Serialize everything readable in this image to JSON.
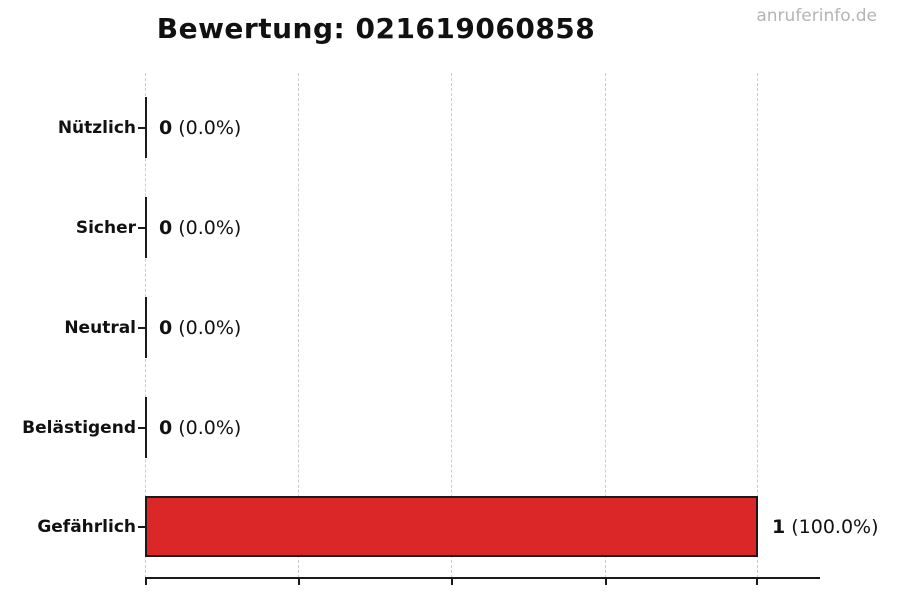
{
  "title": "Bewertung: 021619060858",
  "watermark": "anruferinfo.de",
  "chart_data": {
    "type": "bar",
    "orientation": "horizontal",
    "title": "Bewertung: 021619060858",
    "categories": [
      "Nützlich",
      "Sicher",
      "Neutral",
      "Belästigend",
      "Gefährlich"
    ],
    "values": [
      0,
      0,
      0,
      0,
      1
    ],
    "percentages": [
      0.0,
      0.0,
      0.0,
      0.0,
      100.0
    ],
    "rows": [
      {
        "label": "Nützlich",
        "value": 0,
        "count": "0",
        "pct": "(0.0%)"
      },
      {
        "label": "Sicher",
        "value": 0,
        "count": "0",
        "pct": "(0.0%)"
      },
      {
        "label": "Neutral",
        "value": 0,
        "count": "0",
        "pct": "(0.0%)"
      },
      {
        "label": "Belästigend",
        "value": 0,
        "count": "0",
        "pct": "(0.0%)"
      },
      {
        "label": "Gefährlich",
        "value": 1,
        "count": "1",
        "pct": "(100.0%)"
      }
    ],
    "xlabel": "",
    "ylabel": "",
    "xlim": [
      0,
      1
    ],
    "xticks": [
      0,
      0.25,
      0.5,
      0.75,
      1.0
    ],
    "grid": "vertical-dashed",
    "legend": "none",
    "bar_color": "#dc2728",
    "bar_edge_color": "#1a1a1a",
    "grid_color": "#cccccc",
    "watermark_color": "#b4b4b4"
  }
}
